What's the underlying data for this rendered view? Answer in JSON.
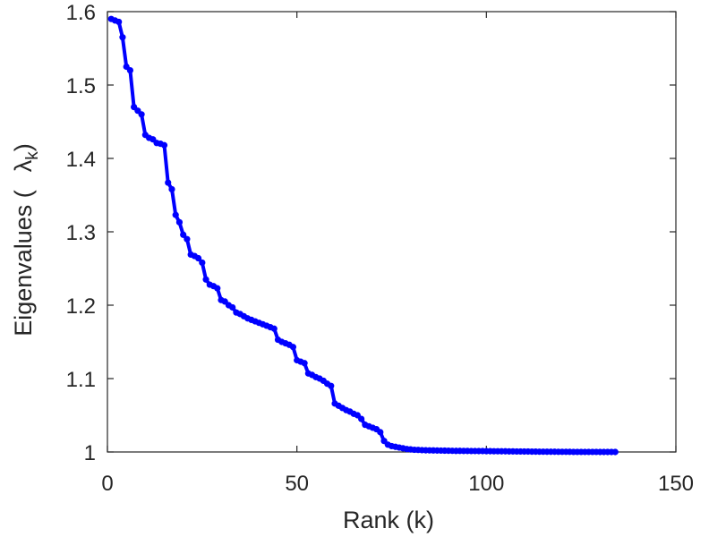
{
  "chart_data": {
    "type": "line",
    "title": "",
    "xlabel": "Rank (k)",
    "ylabel": "Eigenvalues (  λk)",
    "ylabel_parts": {
      "prefix": "Eigenvalues (",
      "symbol": "λ",
      "subscript": "k",
      "suffix": ")"
    },
    "xlim": [
      0,
      150
    ],
    "ylim": [
      1,
      1.6
    ],
    "xticks": [
      0,
      50,
      100,
      150
    ],
    "yticks": [
      1,
      1.1,
      1.2,
      1.3,
      1.4,
      1.5,
      1.6
    ],
    "xtick_labels": [
      "0",
      "50",
      "100",
      "150"
    ],
    "ytick_labels": [
      "1",
      "1.1",
      "1.2",
      "1.3",
      "1.4",
      "1.5",
      "1.6"
    ],
    "grid": false,
    "line_color": "#0000ff",
    "series": [
      {
        "values": [
          1.59,
          1.588,
          1.586,
          1.565,
          1.525,
          1.52,
          1.47,
          1.465,
          1.46,
          1.432,
          1.428,
          1.426,
          1.421,
          1.42,
          1.418,
          1.367,
          1.358,
          1.323,
          1.313,
          1.296,
          1.29,
          1.269,
          1.267,
          1.264,
          1.258,
          1.235,
          1.228,
          1.226,
          1.223,
          1.207,
          1.205,
          1.2,
          1.197,
          1.19,
          1.188,
          1.185,
          1.182,
          1.18,
          1.178,
          1.176,
          1.174,
          1.172,
          1.17,
          1.168,
          1.153,
          1.15,
          1.148,
          1.146,
          1.143,
          1.125,
          1.123,
          1.121,
          1.107,
          1.105,
          1.102,
          1.1,
          1.097,
          1.093,
          1.09,
          1.066,
          1.063,
          1.06,
          1.057,
          1.055,
          1.052,
          1.05,
          1.045,
          1.037,
          1.035,
          1.033,
          1.031,
          1.027,
          1.015,
          1.01,
          1.008,
          1.007,
          1.006,
          1.005,
          1.004,
          1.0035,
          1.003,
          1.0028,
          1.0025,
          1.0023,
          1.0022,
          1.0021,
          1.002,
          1.0019,
          1.0018,
          1.0017,
          1.0016,
          1.0015,
          1.0015,
          1.0014,
          1.0014,
          1.0013,
          1.0013,
          1.0012,
          1.0012,
          1.0011,
          1.0011,
          1.001,
          1.001,
          1.0009,
          1.0009,
          1.0008,
          1.0008,
          1.0007,
          1.0007,
          1.0006,
          1.0006,
          1.0005,
          1.0005,
          1.0004,
          1.0004,
          1.0003,
          1.0003,
          1.0003,
          1.0002,
          1.0002,
          1.0002,
          1.0002,
          1.0001,
          1.0001,
          1.0001,
          1.0001,
          1.0001,
          1.0001,
          1.0001,
          1.0,
          1.0,
          1.0,
          1.0,
          1.0
        ]
      }
    ]
  }
}
